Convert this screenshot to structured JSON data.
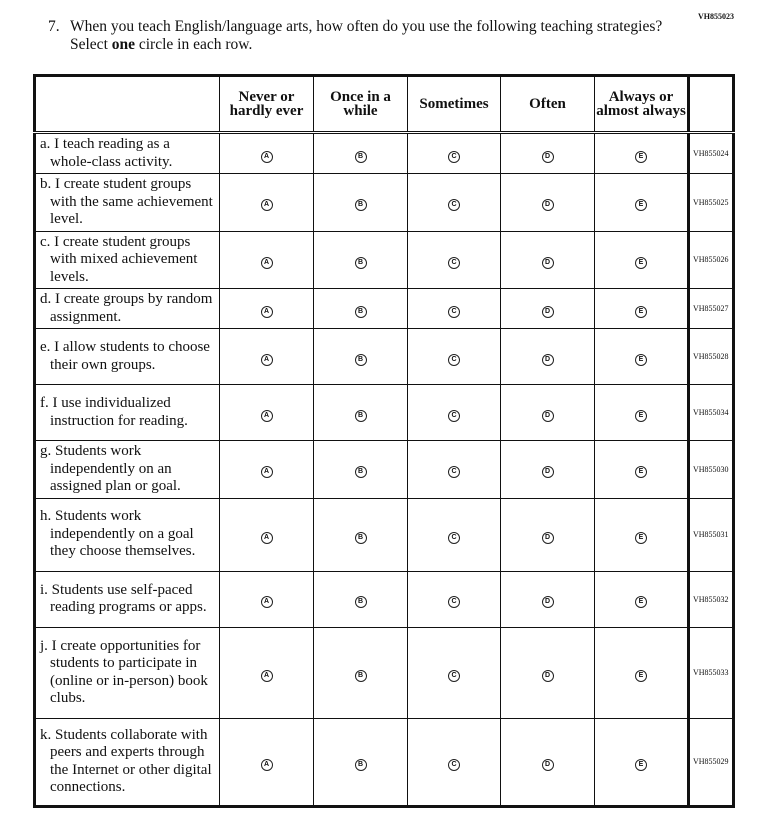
{
  "form_id": "VH855023",
  "question": {
    "number": "7.",
    "text_before": "When you teach English/language arts, how often do you use the following teaching strategies? Select ",
    "emphasis": "one",
    "text_after": " circle in each row."
  },
  "columns": [
    "Never or hardly ever",
    "Once in a while",
    "Sometimes",
    "Often",
    "Always or almost always"
  ],
  "bubble_letters": [
    "A",
    "B",
    "C",
    "D",
    "E"
  ],
  "rows": [
    {
      "label": "a. I teach reading as a whole-class activity.",
      "code": "VH855024"
    },
    {
      "label": "b. I create student groups with the same achievement level.",
      "code": "VH855025"
    },
    {
      "label": "c. I create student groups with mixed achievement levels.",
      "code": "VH855026"
    },
    {
      "label": "d. I create groups by random assignment.",
      "code": "VH855027"
    },
    {
      "label": "e. I allow students to choose their own groups.",
      "code": "VH855028"
    },
    {
      "label": "f. I use individualized instruction for reading.",
      "code": "VH855034"
    },
    {
      "label": "g. Students work independently on an assigned plan or goal.",
      "code": "VH855030"
    },
    {
      "label": "h. Students work independently on a goal they choose themselves.",
      "code": "VH855031"
    },
    {
      "label": "i. Students use self-paced reading programs or apps.",
      "code": "VH855032"
    },
    {
      "label": "j. I create opportunities for students to participate in (online or in-person) book clubs.",
      "code": "VH855033"
    },
    {
      "label": "k. Students collaborate with peers and experts through the Internet or other digital connections.",
      "code": "VH855029"
    }
  ]
}
